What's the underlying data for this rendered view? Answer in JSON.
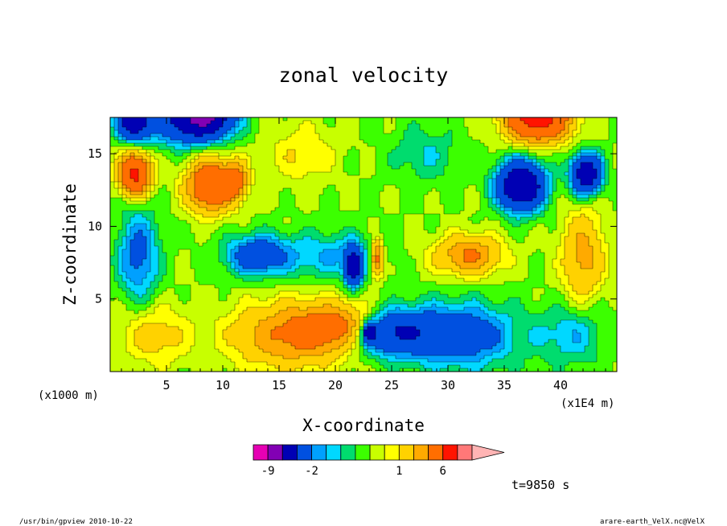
{
  "chart_data": {
    "type": "heatmap",
    "title": "zonal velocity",
    "xlabel": "X-coordinate",
    "ylabel": "Z-coordinate",
    "x_unit": "(x1E4 m)",
    "y_unit": "(x1000 m)",
    "xlim": [
      0,
      45
    ],
    "ylim": [
      0,
      17.5
    ],
    "x_ticks": [
      5,
      10,
      15,
      20,
      25,
      30,
      35,
      40
    ],
    "y_ticks": [
      5,
      10,
      15
    ],
    "grid": false,
    "fields": [
      {
        "x": 22.6,
        "y": 8.0,
        "sx": 6.5,
        "sy": 1.6,
        "a": -11
      },
      {
        "x": 21.6,
        "y": 7.2,
        "sx": 0.7,
        "sy": 1.2,
        "a": -6
      },
      {
        "x": 23.2,
        "y": 8.0,
        "sx": 6.5,
        "sy": 1.6,
        "a": 10
      },
      {
        "x": 23.7,
        "y": 7.8,
        "sx": 0.6,
        "sy": 1.2,
        "a": 4
      },
      {
        "x": 13.0,
        "y": 8.0,
        "sx": 2.6,
        "sy": 1.3,
        "a": -3
      },
      {
        "x": 32.0,
        "y": 8.0,
        "sx": 2.6,
        "sy": 1.3,
        "a": 3
      },
      {
        "x": 21.6,
        "y": 3.0,
        "sx": 4.0,
        "sy": 1.5,
        "a": 6
      },
      {
        "x": 23.8,
        "y": 2.8,
        "sx": 3.8,
        "sy": 1.5,
        "a": -7
      },
      {
        "x": 23.0,
        "y": 2.7,
        "sx": 0.5,
        "sy": 0.6,
        "a": -5
      },
      {
        "x": 16.0,
        "y": 2.5,
        "sx": 5.0,
        "sy": 2.2,
        "a": 3
      },
      {
        "x": 31.0,
        "y": 2.5,
        "sx": 5.0,
        "sy": 2.2,
        "a": -3
      },
      {
        "x": 9.0,
        "y": 12.8,
        "sx": 2.0,
        "sy": 1.6,
        "a": 6
      },
      {
        "x": 11.2,
        "y": 13.2,
        "sx": 1.0,
        "sy": 1.2,
        "a": 3
      },
      {
        "x": 36.5,
        "y": 12.8,
        "sx": 2.0,
        "sy": 1.6,
        "a": -7
      },
      {
        "x": 8.2,
        "y": 17.6,
        "sx": 2.6,
        "sy": 1.5,
        "a": -8
      },
      {
        "x": 38.0,
        "y": 17.5,
        "sx": 2.6,
        "sy": 1.5,
        "a": 8
      },
      {
        "x": 2.2,
        "y": 13.6,
        "sx": 1.3,
        "sy": 1.3,
        "a": 7
      },
      {
        "x": 42.3,
        "y": 13.6,
        "sx": 1.3,
        "sy": 1.3,
        "a": -6
      },
      {
        "x": 2.5,
        "y": 8.0,
        "sx": 1.8,
        "sy": 3.0,
        "a": -2.4
      },
      {
        "x": 42.0,
        "y": 8.0,
        "sx": 1.8,
        "sy": 3.0,
        "a": 2.4
      },
      {
        "x": 2.2,
        "y": 17.2,
        "sx": 1.5,
        "sy": 1.2,
        "a": -6
      },
      {
        "x": 5.5,
        "y": 16.8,
        "sx": 2.0,
        "sy": 1.5,
        "a": -1.5
      },
      {
        "x": 4.0,
        "y": 2.5,
        "sx": 3.0,
        "sy": 2.0,
        "a": 1.4
      },
      {
        "x": 41.0,
        "y": 2.5,
        "sx": 3.0,
        "sy": 2.0,
        "a": -1.4
      },
      {
        "x": 17.0,
        "y": 15.0,
        "sx": 3.0,
        "sy": 2.0,
        "a": 1.0
      },
      {
        "x": 28.0,
        "y": 15.0,
        "sx": 3.0,
        "sy": 2.0,
        "a": -1.0
      }
    ],
    "colorbar": {
      "levels": [
        -9,
        -2,
        1,
        6
      ],
      "colors": [
        "#e600b4",
        "#8200b4",
        "#0000b4",
        "#0050e0",
        "#00a0ff",
        "#00d8ff",
        "#00dc6e",
        "#3cff00",
        "#c8ff00",
        "#ffff00",
        "#ffd200",
        "#ffaa00",
        "#ff6e00",
        "#ff1400",
        "#ff7878",
        "#ffb4b4"
      ],
      "bounds": [
        -11,
        -9,
        -7,
        -4,
        -2,
        -1.5,
        -1,
        -0.5,
        0,
        0.5,
        1,
        2,
        3,
        6,
        8,
        12,
        99
      ]
    }
  },
  "footer": {
    "time": "t=9850 s",
    "left": "/usr/bin/gpview  2010-10-22",
    "right": "arare-earth_VelX.nc@VelX"
  }
}
